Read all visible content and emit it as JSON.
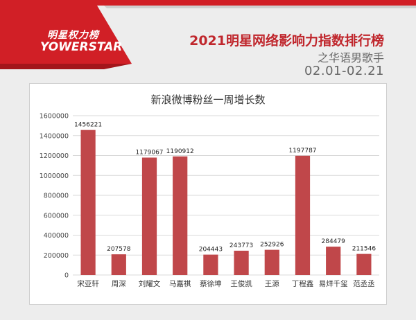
{
  "brand": {
    "logo_text": "明星权力榜",
    "logo_sub": "YOWERSTAR",
    "accent": "#c0272d"
  },
  "header": {
    "title": "2021明星网络影响力指数排行榜",
    "subtitle": "之华语男歌手",
    "date_range": "02.01-02.21"
  },
  "chart_data": {
    "type": "bar",
    "title": "新浪微博粉丝一周增长数",
    "categories": [
      "宋亚轩",
      "周深",
      "刘耀文",
      "马嘉祺",
      "蔡徐坤",
      "王俊凯",
      "王源",
      "丁程鑫",
      "易烊千玺",
      "范丞丞"
    ],
    "values": [
      1456221,
      207578,
      1179067,
      1190912,
      204443,
      243773,
      252926,
      1197787,
      284479,
      211546
    ],
    "ylim": [
      0,
      1600000
    ],
    "yticks": [
      0,
      200000,
      400000,
      600000,
      800000,
      1000000,
      1200000,
      1400000,
      1600000
    ],
    "grid": true,
    "bar_color": "#c0474a"
  }
}
